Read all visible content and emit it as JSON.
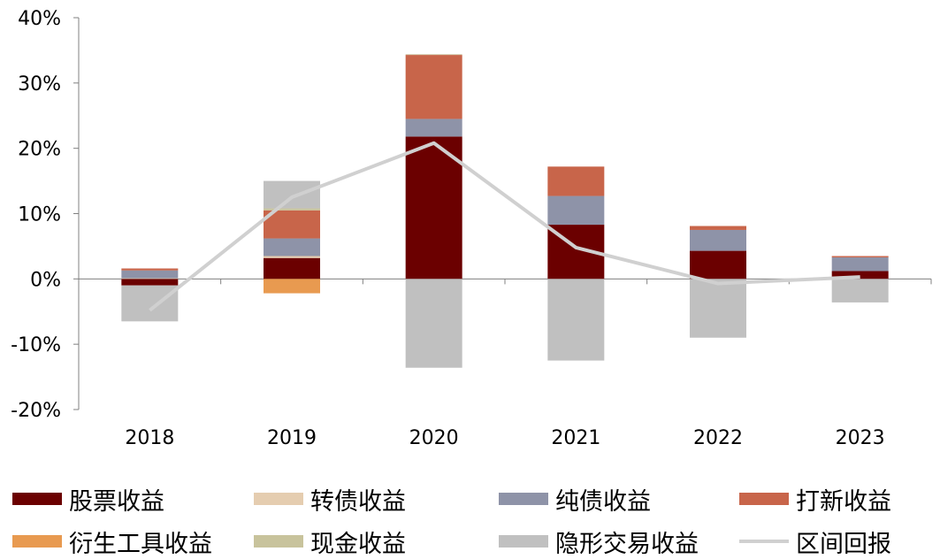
{
  "chart_data": {
    "type": "bar",
    "subtype": "stacked-bar-with-line",
    "categories": [
      "2018",
      "2019",
      "2020",
      "2021",
      "2022",
      "2023"
    ],
    "ylim": [
      -20,
      40
    ],
    "yticks": [
      -20,
      -10,
      0,
      10,
      20,
      30,
      40
    ],
    "ytick_labels": [
      "-20%",
      "-10%",
      "0%",
      "10%",
      "20%",
      "30%",
      "40%"
    ],
    "legend_position": "bottom",
    "grid": false,
    "series": [
      {
        "name": "股票收益",
        "color": "#6b0000",
        "values": [
          -1.0,
          3.2,
          21.8,
          8.3,
          4.3,
          1.2
        ]
      },
      {
        "name": "转债收益",
        "color": "#e5cdb0",
        "values": [
          0.1,
          0.3,
          0.0,
          0.0,
          0.0,
          0.0
        ]
      },
      {
        "name": "纯债收益",
        "color": "#8e93a8",
        "values": [
          1.2,
          2.7,
          2.7,
          4.4,
          3.2,
          2.1
        ]
      },
      {
        "name": "打新收益",
        "color": "#c8654a",
        "values": [
          0.3,
          4.3,
          9.8,
          4.5,
          0.6,
          0.2
        ]
      },
      {
        "name": "衍生工具收益",
        "color": "#e89a50",
        "values": [
          0.0,
          -2.2,
          0.0,
          0.0,
          0.0,
          0.0
        ]
      },
      {
        "name": "现金收益",
        "color": "#c8c39c",
        "values": [
          0.0,
          0.3,
          0.1,
          0.0,
          0.0,
          0.0
        ]
      },
      {
        "name": "隐形交易收益",
        "color": "#c0c0c0",
        "values": [
          -5.5,
          4.2,
          -13.6,
          -12.5,
          -9.0,
          -3.6
        ]
      }
    ],
    "line": {
      "name": "区间回报",
      "color": "#d0d0d0",
      "values": [
        -4.8,
        12.5,
        20.8,
        4.8,
        -0.7,
        0.3
      ]
    }
  }
}
